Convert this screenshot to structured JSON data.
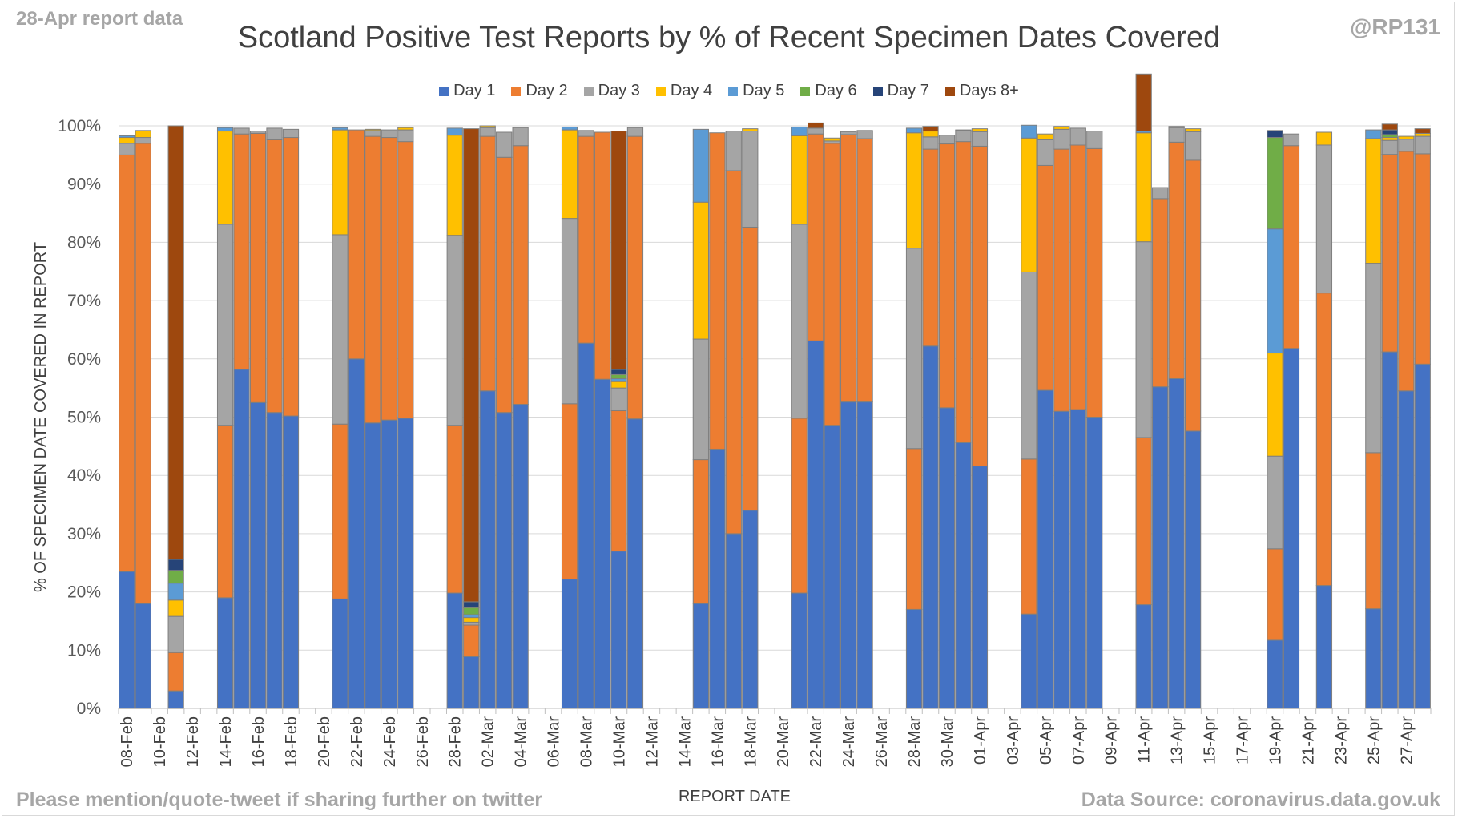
{
  "header": {
    "report_label": "28-Apr report data",
    "handle": "@RP131",
    "title": "Scotland Positive Test Reports by % of Recent Specimen Dates Covered"
  },
  "footer": {
    "note": "Please mention/quote-tweet if sharing further on twitter",
    "source": "Data Source: coronavirus.data.gov.uk"
  },
  "chart_data": {
    "type": "bar",
    "stacked": "percent",
    "title": "Scotland Positive Test Reports by % of Recent Specimen Dates Covered",
    "xlabel": "REPORT DATE",
    "ylabel": "% OF SPECIMEN DATE COVERED IN REPORT",
    "ylim": [
      0,
      100
    ],
    "y_ticks": [
      "0%",
      "10%",
      "20%",
      "30%",
      "40%",
      "50%",
      "60%",
      "70%",
      "80%",
      "90%",
      "100%"
    ],
    "grid": true,
    "legend_position": "top",
    "categories": [
      "08-Feb",
      "09-Feb",
      "10-Feb",
      "11-Feb",
      "12-Feb",
      "13-Feb",
      "14-Feb",
      "15-Feb",
      "16-Feb",
      "17-Feb",
      "18-Feb",
      "19-Feb",
      "20-Feb",
      "21-Feb",
      "22-Feb",
      "23-Feb",
      "24-Feb",
      "25-Feb",
      "26-Feb",
      "27-Feb",
      "28-Feb",
      "01-Mar",
      "02-Mar",
      "03-Mar",
      "04-Mar",
      "05-Mar",
      "06-Mar",
      "07-Mar",
      "08-Mar",
      "09-Mar",
      "10-Mar",
      "11-Mar",
      "12-Mar",
      "13-Mar",
      "14-Mar",
      "15-Mar",
      "16-Mar",
      "17-Mar",
      "18-Mar",
      "19-Mar",
      "20-Mar",
      "21-Mar",
      "22-Mar",
      "23-Mar",
      "24-Mar",
      "25-Mar",
      "26-Mar",
      "27-Mar",
      "28-Mar",
      "29-Mar",
      "30-Mar",
      "31-Mar",
      "01-Apr",
      "02-Apr",
      "03-Apr",
      "04-Apr",
      "05-Apr",
      "06-Apr",
      "07-Apr",
      "08-Apr",
      "09-Apr",
      "10-Apr",
      "11-Apr",
      "12-Apr",
      "13-Apr",
      "14-Apr",
      "15-Apr",
      "16-Apr",
      "17-Apr",
      "18-Apr",
      "19-Apr",
      "20-Apr",
      "21-Apr",
      "22-Apr",
      "23-Apr",
      "24-Apr",
      "25-Apr",
      "26-Apr",
      "27-Apr",
      "28-Apr"
    ],
    "x_tick_labels": [
      "08-Feb",
      "10-Feb",
      "12-Feb",
      "14-Feb",
      "16-Feb",
      "18-Feb",
      "20-Feb",
      "22-Feb",
      "24-Feb",
      "26-Feb",
      "28-Feb",
      "02-Mar",
      "04-Mar",
      "06-Mar",
      "08-Mar",
      "10-Mar",
      "12-Mar",
      "14-Mar",
      "16-Mar",
      "18-Mar",
      "20-Mar",
      "22-Mar",
      "24-Mar",
      "26-Mar",
      "28-Mar",
      "30-Mar",
      "01-Apr",
      "03-Apr",
      "05-Apr",
      "07-Apr",
      "09-Apr",
      "11-Apr",
      "13-Apr",
      "15-Apr",
      "17-Apr",
      "19-Apr",
      "21-Apr",
      "23-Apr",
      "25-Apr",
      "27-Apr"
    ],
    "series": [
      {
        "name": "Day 1",
        "color": "#4472C4",
        "values": [
          23.5,
          18,
          0,
          3,
          0,
          0,
          19,
          58.2,
          52.5,
          50.8,
          50.2,
          0,
          0,
          18.8,
          60,
          49,
          49.5,
          49.8,
          0,
          0,
          19.8,
          8.9,
          54.5,
          50.8,
          52.2,
          0,
          0,
          22.2,
          62.7,
          56.5,
          27,
          49.7,
          0,
          0,
          0,
          18,
          44.5,
          30,
          34,
          0,
          0,
          19.8,
          63.1,
          48.6,
          52.6,
          52.6,
          0,
          0,
          17,
          62.2,
          51.6,
          45.6,
          41.6,
          0,
          0,
          16.2,
          54.6,
          51,
          51.3,
          50,
          0,
          0,
          17.8,
          55.2,
          56.6,
          47.6,
          0,
          0,
          0,
          0,
          11.7,
          61.8,
          0,
          21.1,
          0,
          0,
          17.1,
          61.2,
          54.5,
          59.1
        ]
      },
      {
        "name": "Day 2",
        "color": "#ED7D31",
        "values": [
          71.5,
          79,
          0,
          6.6,
          0,
          0,
          29.6,
          40.4,
          46.2,
          46.8,
          47.8,
          0,
          0,
          30,
          39.3,
          49.2,
          48.5,
          47.5,
          0,
          0,
          28.8,
          5.4,
          43.7,
          43.8,
          44.4,
          0,
          0,
          30.1,
          35.5,
          42.4,
          24.1,
          48.5,
          0,
          0,
          0,
          24.7,
          54.3,
          62.3,
          48.6,
          0,
          0,
          30,
          35.5,
          48.4,
          45.9,
          45.2,
          0,
          0,
          27.6,
          33.8,
          45.3,
          51.7,
          54.9,
          0,
          0,
          26.6,
          38.6,
          45,
          45.4,
          46.1,
          0,
          0,
          28.7,
          32.3,
          40.6,
          46.5,
          0,
          0,
          0,
          0,
          15.7,
          34.8,
          0,
          50.2,
          0,
          0,
          26.8,
          33.9,
          41.1,
          36.1
        ]
      },
      {
        "name": "Day 3",
        "color": "#A5A5A5",
        "values": [
          2,
          1,
          0,
          6.2,
          0,
          0,
          34.5,
          1,
          0.4,
          2,
          1.4,
          0,
          0,
          32.5,
          0,
          1,
          1.3,
          2,
          0,
          0,
          32.6,
          0.5,
          1.5,
          4.3,
          3.1,
          0,
          0,
          31.8,
          1,
          0,
          3.9,
          1.5,
          0,
          0,
          0,
          20.7,
          0,
          6.8,
          16.5,
          0,
          0,
          33.3,
          1,
          0.4,
          0.5,
          1.4,
          0,
          0,
          34.4,
          2.1,
          1.5,
          1.9,
          2.5,
          0,
          0,
          32.1,
          4.4,
          3.4,
          2.9,
          3,
          0,
          0,
          33.6,
          1.9,
          2.5,
          4.9,
          0,
          0,
          0,
          0,
          15.9,
          2,
          0,
          25.4,
          0,
          0,
          32.5,
          2.4,
          2.1,
          3
        ]
      },
      {
        "name": "Day 4",
        "color": "#FFC000",
        "values": [
          1,
          1.2,
          0,
          2.8,
          0,
          0,
          16,
          0,
          0,
          0,
          0,
          0,
          0,
          18,
          0,
          0.2,
          0,
          0.4,
          0,
          0,
          17.2,
          0.8,
          0.3,
          0,
          0,
          0,
          0,
          15.2,
          0,
          0,
          1.1,
          0,
          0,
          0,
          0,
          23.5,
          0,
          0,
          0.4,
          0,
          0,
          15.2,
          0,
          0.5,
          0,
          0,
          0,
          0,
          19.8,
          1,
          0,
          0.1,
          0.5,
          0,
          0,
          23,
          1,
          0.5,
          0,
          0,
          0,
          0,
          18.7,
          0,
          0.2,
          0.5,
          0,
          0,
          0,
          0,
          17.7,
          0,
          0,
          2.2,
          0,
          0,
          21.4,
          0.5,
          0.5,
          0.5
        ]
      },
      {
        "name": "Day 5",
        "color": "#5B9BD5",
        "values": [
          0.3,
          0,
          0,
          2.9,
          0,
          0,
          0.6,
          0,
          0,
          0,
          0,
          0,
          0,
          0.4,
          0,
          0,
          0,
          0,
          0,
          0,
          1.2,
          0.5,
          0,
          0,
          0,
          0,
          0,
          0.5,
          0,
          0,
          0.5,
          0,
          0,
          0,
          0,
          12.5,
          0,
          0,
          0,
          0,
          0,
          1.5,
          0,
          0,
          0,
          0,
          0,
          0,
          0.8,
          0,
          0,
          0,
          0,
          0,
          0,
          2.2,
          0,
          0,
          0,
          0,
          0,
          0,
          0.3,
          0,
          0,
          0,
          0,
          0,
          0,
          0,
          21.3,
          0,
          0,
          0,
          0,
          0,
          1.5,
          0,
          0,
          0
        ]
      },
      {
        "name": "Day 6",
        "color": "#70AD47",
        "values": [
          0,
          0,
          0,
          2.2,
          0,
          0,
          0,
          0,
          0,
          0,
          0,
          0,
          0,
          0,
          0,
          0,
          0,
          0,
          0,
          0,
          0,
          1.2,
          0,
          0,
          0,
          0,
          0,
          0,
          0,
          0,
          0.7,
          0,
          0,
          0,
          0,
          0,
          0,
          0,
          0,
          0,
          0,
          0,
          0,
          0,
          0,
          0,
          0,
          0,
          0,
          0,
          0,
          0,
          0,
          0,
          0,
          0,
          0,
          0,
          0,
          0,
          0,
          0,
          0,
          0,
          0,
          0,
          0,
          0,
          0,
          0,
          15.7,
          0,
          0,
          0,
          0,
          0,
          0,
          0.5,
          0,
          0
        ]
      },
      {
        "name": "Day 7",
        "color": "#264478",
        "values": [
          0,
          0,
          0,
          1.9,
          0,
          0,
          0,
          0,
          0,
          0,
          0,
          0,
          0,
          0,
          0,
          0,
          0,
          0,
          0,
          0,
          0,
          1,
          0,
          0,
          0,
          0,
          0,
          0,
          0,
          0,
          0.9,
          0,
          0,
          0,
          0,
          0,
          0,
          0,
          0,
          0,
          0,
          0,
          0,
          0,
          0,
          0,
          0,
          0,
          0,
          0,
          0,
          0,
          0,
          0,
          0,
          0,
          0,
          0,
          0,
          0,
          0,
          0,
          0,
          0,
          0,
          0,
          0,
          0,
          0,
          0,
          1.2,
          0,
          0,
          0,
          0,
          0,
          0,
          0.8,
          0,
          0
        ]
      },
      {
        "name": "Days 8+",
        "color": "#9E480E",
        "values": [
          0,
          0,
          0,
          74.4,
          0,
          0,
          0,
          0,
          0,
          0,
          0,
          0,
          0,
          0,
          0,
          0,
          0,
          0,
          0,
          0,
          0,
          81.2,
          0,
          0,
          0,
          0,
          0,
          0,
          0,
          0,
          40.9,
          0,
          0,
          0,
          0,
          0,
          0,
          0,
          0,
          0,
          0,
          0,
          0.9,
          0,
          0,
          0,
          0,
          0,
          0,
          0.8,
          0,
          0,
          0,
          0,
          0,
          0,
          0,
          0,
          0,
          0,
          0,
          0,
          9.8,
          0,
          0,
          0,
          0,
          0,
          0,
          0,
          0,
          0,
          0,
          0,
          0,
          0,
          0,
          1,
          0,
          0.8
        ]
      }
    ]
  }
}
